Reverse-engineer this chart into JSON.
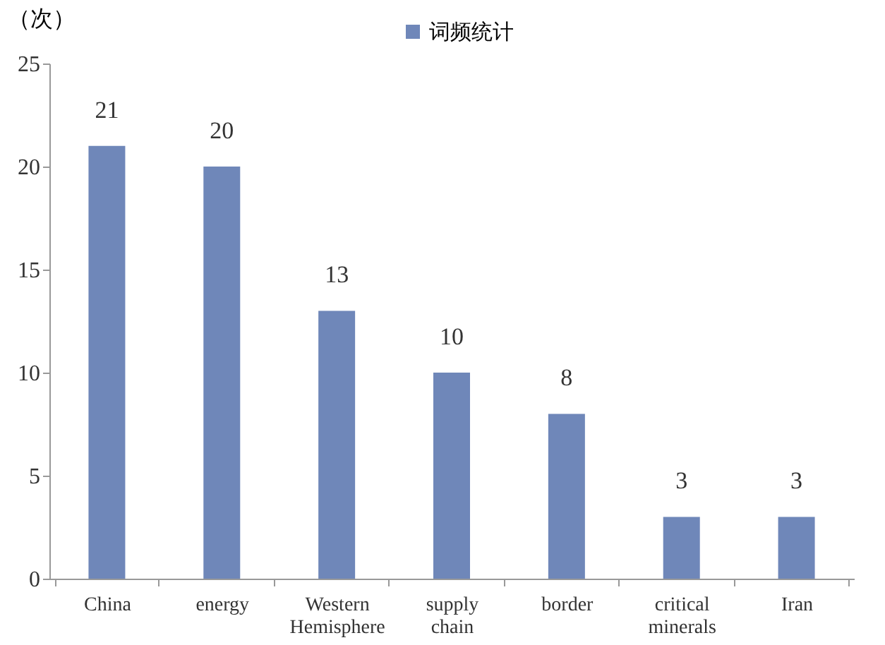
{
  "chart_data": {
    "type": "bar",
    "ylabel": "（次）",
    "categories": [
      "China",
      "energy",
      "Western Hemisphere",
      "supply chain",
      "border",
      "critical minerals",
      "Iran"
    ],
    "series": [
      {
        "name": "词频统计",
        "color": "#6f87b9",
        "values": [
          21,
          20,
          13,
          10,
          8,
          3,
          3
        ]
      }
    ],
    "ylim": [
      0,
      25
    ],
    "yticks": [
      0,
      5,
      10,
      15,
      20,
      25
    ],
    "grid": false,
    "legend": "top",
    "data_labels": true
  }
}
